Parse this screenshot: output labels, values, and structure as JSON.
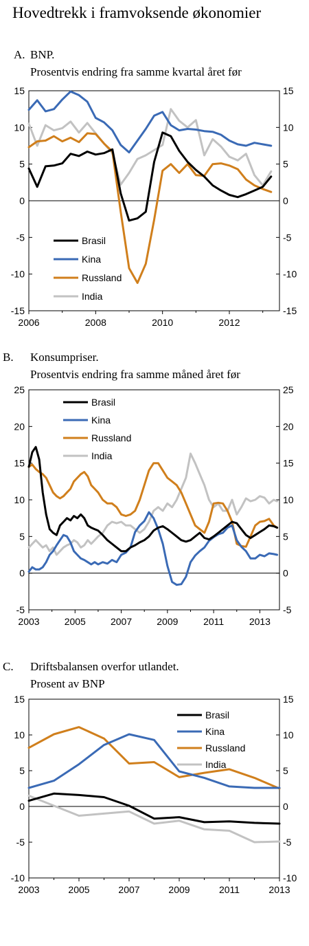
{
  "title": "Hovedtrekk i framvoksende økonomier",
  "colors": {
    "Brasil": "#000000",
    "Kina": "#3a6ab5",
    "Russland": "#d07f1c",
    "India": "#c2c2c2"
  },
  "chart_data": [
    {
      "type": "line",
      "letter": "A.",
      "title": "BNP.",
      "subtitle": "Prosentvis endring fra samme kvartal året før",
      "ylim": [
        -15,
        15
      ],
      "yticks": [
        -15,
        -10,
        -5,
        0,
        5,
        10,
        15
      ],
      "xlim": [
        2006,
        2013.5
      ],
      "xticks": [
        2006,
        2008,
        2010,
        2012
      ],
      "legend_position": "bottom-left",
      "series": [
        {
          "name": "Brasil",
          "x": [
            2006.0,
            2006.25,
            2006.5,
            2006.75,
            2007.0,
            2007.25,
            2007.5,
            2007.75,
            2008.0,
            2008.25,
            2008.5,
            2008.75,
            2009.0,
            2009.25,
            2009.5,
            2009.75,
            2010.0,
            2010.25,
            2010.5,
            2010.75,
            2011.0,
            2011.25,
            2011.5,
            2011.75,
            2012.0,
            2012.25,
            2012.5,
            2012.75,
            2013.0,
            2013.25
          ],
          "values": [
            4.4,
            1.9,
            4.7,
            4.8,
            5.1,
            6.4,
            6.1,
            6.7,
            6.3,
            6.5,
            7.0,
            1.0,
            -2.7,
            -2.4,
            -1.5,
            5.3,
            9.3,
            8.8,
            6.8,
            5.3,
            4.2,
            3.3,
            2.1,
            1.4,
            0.8,
            0.5,
            0.9,
            1.4,
            1.9,
            3.3
          ]
        },
        {
          "name": "Kina",
          "x": [
            2006.0,
            2006.25,
            2006.5,
            2006.75,
            2007.0,
            2007.25,
            2007.5,
            2007.75,
            2008.0,
            2008.25,
            2008.5,
            2008.75,
            2009.0,
            2009.25,
            2009.5,
            2009.75,
            2010.0,
            2010.25,
            2010.5,
            2010.75,
            2011.0,
            2011.25,
            2011.5,
            2011.75,
            2012.0,
            2012.25,
            2012.5,
            2012.75,
            2013.0,
            2013.25
          ],
          "values": [
            12.4,
            13.7,
            12.2,
            12.5,
            13.8,
            14.9,
            14.4,
            13.5,
            11.3,
            10.7,
            9.6,
            7.6,
            6.6,
            8.2,
            9.8,
            11.6,
            12.1,
            10.3,
            9.6,
            9.8,
            9.7,
            9.5,
            9.4,
            9.0,
            8.2,
            7.7,
            7.5,
            7.9,
            7.7,
            7.5
          ]
        },
        {
          "name": "Russland",
          "x": [
            2006.0,
            2006.25,
            2006.5,
            2006.75,
            2007.0,
            2007.25,
            2007.5,
            2007.75,
            2008.0,
            2008.25,
            2008.5,
            2008.75,
            2009.0,
            2009.25,
            2009.5,
            2009.75,
            2010.0,
            2010.25,
            2010.5,
            2010.75,
            2011.0,
            2011.25,
            2011.5,
            2011.75,
            2012.0,
            2012.25,
            2012.5,
            2012.75,
            2013.0,
            2013.25
          ],
          "values": [
            7.3,
            8.1,
            8.2,
            8.8,
            8.1,
            8.6,
            8.0,
            9.2,
            9.1,
            7.8,
            6.7,
            -1.5,
            -9.2,
            -11.2,
            -8.6,
            -2.6,
            4.1,
            5.0,
            3.8,
            5.0,
            3.5,
            3.4,
            5.0,
            5.1,
            4.8,
            4.3,
            2.9,
            2.1,
            1.6,
            1.2
          ]
        },
        {
          "name": "India",
          "x": [
            2006.0,
            2006.25,
            2006.5,
            2006.75,
            2007.0,
            2007.25,
            2007.5,
            2007.75,
            2008.0,
            2008.25,
            2008.5,
            2008.75,
            2009.0,
            2009.25,
            2009.5,
            2009.75,
            2010.0,
            2010.25,
            2010.5,
            2010.75,
            2011.0,
            2011.25,
            2011.5,
            2011.75,
            2012.0,
            2012.25,
            2012.5,
            2012.75,
            2013.0,
            2013.25
          ],
          "values": [
            10.5,
            7.5,
            10.3,
            9.6,
            9.9,
            10.8,
            9.3,
            10.6,
            9.2,
            7.8,
            6.5,
            2.2,
            3.8,
            5.7,
            6.2,
            6.9,
            7.6,
            12.5,
            10.9,
            10.0,
            11.0,
            6.2,
            8.4,
            7.4,
            6.0,
            5.5,
            6.4,
            3.5,
            2.1,
            4.0
          ]
        }
      ]
    },
    {
      "type": "line",
      "letter": "B.",
      "title": "Konsumpriser.",
      "subtitle": "Prosentvis endring fra samme måned året før",
      "ylim": [
        -5,
        25
      ],
      "yticks": [
        -5,
        0,
        5,
        10,
        15,
        20,
        25
      ],
      "xlim": [
        2003,
        2013.85
      ],
      "xticks": [
        2003,
        2005,
        2007,
        2009,
        2011,
        2013
      ],
      "legend_position": "top-left",
      "series": [
        {
          "name": "Brasil",
          "x": [
            2003.0,
            2003.15,
            2003.3,
            2003.45,
            2003.6,
            2003.75,
            2003.9,
            2004.05,
            2004.2,
            2004.35,
            2004.5,
            2004.65,
            2004.8,
            2004.95,
            2005.1,
            2005.25,
            2005.4,
            2005.55,
            2005.7,
            2005.85,
            2006.0,
            2006.2,
            2006.4,
            2006.6,
            2006.8,
            2007.0,
            2007.2,
            2007.4,
            2007.6,
            2007.8,
            2008.0,
            2008.2,
            2008.4,
            2008.6,
            2008.8,
            2009.0,
            2009.2,
            2009.4,
            2009.6,
            2009.8,
            2010.0,
            2010.2,
            2010.4,
            2010.6,
            2010.8,
            2011.0,
            2011.2,
            2011.4,
            2011.6,
            2011.8,
            2012.0,
            2012.2,
            2012.4,
            2012.6,
            2012.8,
            2013.0,
            2013.2,
            2013.4,
            2013.6,
            2013.75
          ],
          "values": [
            14.5,
            16.5,
            17.2,
            15.5,
            11.0,
            8.0,
            6.0,
            5.5,
            5.2,
            6.5,
            7.0,
            7.5,
            7.2,
            7.8,
            7.5,
            8.0,
            7.5,
            6.5,
            6.2,
            6.0,
            5.8,
            5.2,
            4.5,
            4.0,
            3.5,
            3.0,
            3.0,
            3.5,
            3.8,
            4.2,
            4.5,
            5.0,
            5.8,
            6.2,
            6.4,
            6.0,
            5.5,
            5.0,
            4.5,
            4.3,
            4.5,
            5.0,
            5.5,
            4.8,
            4.6,
            5.0,
            5.5,
            6.0,
            6.5,
            7.0,
            6.8,
            6.0,
            5.2,
            4.8,
            5.2,
            5.6,
            6.0,
            6.5,
            6.4,
            6.2
          ]
        },
        {
          "name": "Kina",
          "x": [
            2003.0,
            2003.15,
            2003.3,
            2003.45,
            2003.6,
            2003.75,
            2003.9,
            2004.05,
            2004.2,
            2004.35,
            2004.5,
            2004.65,
            2004.8,
            2004.95,
            2005.1,
            2005.25,
            2005.4,
            2005.55,
            2005.7,
            2005.85,
            2006.0,
            2006.2,
            2006.4,
            2006.6,
            2006.8,
            2007.0,
            2007.2,
            2007.4,
            2007.6,
            2007.8,
            2008.0,
            2008.2,
            2008.4,
            2008.6,
            2008.8,
            2009.0,
            2009.2,
            2009.4,
            2009.6,
            2009.8,
            2010.0,
            2010.2,
            2010.4,
            2010.6,
            2010.8,
            2011.0,
            2011.2,
            2011.4,
            2011.6,
            2011.8,
            2012.0,
            2012.2,
            2012.4,
            2012.6,
            2012.8,
            2013.0,
            2013.2,
            2013.4,
            2013.6,
            2013.75
          ],
          "values": [
            0.2,
            0.8,
            0.5,
            0.5,
            0.8,
            1.5,
            2.5,
            3.0,
            3.8,
            4.5,
            5.2,
            5.0,
            4.2,
            3.0,
            2.5,
            2.0,
            1.8,
            1.5,
            1.2,
            1.5,
            1.2,
            1.5,
            1.3,
            1.8,
            1.5,
            2.5,
            2.8,
            3.5,
            5.6,
            6.5,
            7.1,
            8.3,
            7.5,
            6.0,
            4.0,
            1.0,
            -1.2,
            -1.6,
            -1.5,
            -0.5,
            1.5,
            2.4,
            3.0,
            3.5,
            4.4,
            4.9,
            5.3,
            5.5,
            6.2,
            6.5,
            4.5,
            3.6,
            3.0,
            2.0,
            2.0,
            2.5,
            2.3,
            2.7,
            2.6,
            2.5
          ]
        },
        {
          "name": "Russland",
          "x": [
            2003.0,
            2003.15,
            2003.3,
            2003.45,
            2003.6,
            2003.75,
            2003.9,
            2004.05,
            2004.2,
            2004.35,
            2004.5,
            2004.65,
            2004.8,
            2004.95,
            2005.1,
            2005.25,
            2005.4,
            2005.55,
            2005.7,
            2005.85,
            2006.0,
            2006.2,
            2006.4,
            2006.6,
            2006.8,
            2007.0,
            2007.2,
            2007.4,
            2007.6,
            2007.8,
            2008.0,
            2008.2,
            2008.4,
            2008.6,
            2008.8,
            2009.0,
            2009.2,
            2009.4,
            2009.6,
            2009.8,
            2010.0,
            2010.2,
            2010.4,
            2010.6,
            2010.8,
            2011.0,
            2011.2,
            2011.4,
            2011.6,
            2011.8,
            2012.0,
            2012.2,
            2012.4,
            2012.6,
            2012.8,
            2013.0,
            2013.2,
            2013.4,
            2013.6,
            2013.75
          ],
          "values": [
            14.5,
            14.8,
            14.2,
            13.8,
            13.5,
            13.0,
            12.0,
            11.0,
            10.5,
            10.2,
            10.5,
            11.0,
            11.5,
            12.5,
            13.0,
            13.5,
            13.8,
            13.2,
            12.0,
            11.5,
            11.0,
            10.0,
            9.5,
            9.5,
            9.0,
            8.0,
            7.8,
            8.0,
            8.5,
            10.0,
            12.0,
            14.0,
            15.0,
            15.0,
            14.0,
            13.0,
            12.5,
            12.0,
            11.0,
            9.5,
            8.0,
            6.5,
            6.0,
            5.5,
            7.0,
            9.5,
            9.6,
            9.5,
            8.5,
            7.0,
            4.0,
            3.7,
            3.6,
            5.0,
            6.5,
            7.0,
            7.1,
            7.4,
            6.5,
            6.2
          ]
        },
        {
          "name": "India",
          "x": [
            2003.0,
            2003.15,
            2003.3,
            2003.45,
            2003.6,
            2003.75,
            2003.9,
            2004.05,
            2004.2,
            2004.35,
            2004.5,
            2004.65,
            2004.8,
            2004.95,
            2005.1,
            2005.25,
            2005.4,
            2005.55,
            2005.7,
            2005.85,
            2006.0,
            2006.2,
            2006.4,
            2006.6,
            2006.8,
            2007.0,
            2007.2,
            2007.4,
            2007.6,
            2007.8,
            2008.0,
            2008.2,
            2008.4,
            2008.6,
            2008.8,
            2009.0,
            2009.2,
            2009.4,
            2009.6,
            2009.8,
            2010.0,
            2010.2,
            2010.4,
            2010.6,
            2010.8,
            2011.0,
            2011.2,
            2011.4,
            2011.6,
            2011.8,
            2012.0,
            2012.2,
            2012.4,
            2012.6,
            2012.8,
            2013.0,
            2013.2,
            2013.4,
            2013.6,
            2013.75
          ],
          "values": [
            3.5,
            4.0,
            4.5,
            4.0,
            3.5,
            3.8,
            3.0,
            3.5,
            2.5,
            3.0,
            3.5,
            3.8,
            4.0,
            4.5,
            4.2,
            3.5,
            3.8,
            4.5,
            4.0,
            4.5,
            5.0,
            5.5,
            6.5,
            7.0,
            6.8,
            7.0,
            6.5,
            6.5,
            6.0,
            5.5,
            6.0,
            7.0,
            8.5,
            9.0,
            8.5,
            9.5,
            9.0,
            10.0,
            11.5,
            13.0,
            16.3,
            15.0,
            13.5,
            12.0,
            10.0,
            9.0,
            9.5,
            8.5,
            8.5,
            10.0,
            8.0,
            9.0,
            10.2,
            9.8,
            10.0,
            10.5,
            10.3,
            9.5,
            10.0,
            9.8
          ]
        }
      ]
    },
    {
      "type": "line",
      "letter": "C.",
      "title": "Driftsbalansen overfor utlandet.",
      "subtitle": "Prosent av BNP",
      "ylim": [
        -10,
        15
      ],
      "yticks": [
        -10,
        -5,
        0,
        5,
        10,
        15
      ],
      "xlim": [
        2003,
        2013
      ],
      "xticks": [
        2003,
        2005,
        2007,
        2009,
        2011,
        2013
      ],
      "legend_position": "top-right",
      "series": [
        {
          "name": "Brasil",
          "x": [
            2003,
            2004,
            2005,
            2006,
            2007,
            2008,
            2009,
            2010,
            2011,
            2012,
            2013
          ],
          "values": [
            0.8,
            1.8,
            1.6,
            1.3,
            0.1,
            -1.7,
            -1.5,
            -2.2,
            -2.1,
            -2.3,
            -2.4
          ]
        },
        {
          "name": "Kina",
          "x": [
            2003,
            2004,
            2005,
            2006,
            2007,
            2008,
            2009,
            2010,
            2011,
            2012,
            2013
          ],
          "values": [
            2.6,
            3.6,
            5.9,
            8.6,
            10.1,
            9.3,
            4.9,
            4.0,
            2.8,
            2.6,
            2.6
          ]
        },
        {
          "name": "Russland",
          "x": [
            2003,
            2004,
            2005,
            2006,
            2007,
            2008,
            2009,
            2010,
            2011,
            2012,
            2013
          ],
          "values": [
            8.2,
            10.1,
            11.1,
            9.5,
            6.0,
            6.2,
            4.1,
            4.7,
            5.2,
            4.0,
            2.5
          ]
        },
        {
          "name": "India",
          "x": [
            2003,
            2004,
            2005,
            2006,
            2007,
            2008,
            2009,
            2010,
            2011,
            2012,
            2013
          ],
          "values": [
            1.5,
            0.1,
            -1.3,
            -1.0,
            -0.7,
            -2.4,
            -2.0,
            -3.2,
            -3.4,
            -5.0,
            -4.9
          ]
        }
      ]
    }
  ]
}
